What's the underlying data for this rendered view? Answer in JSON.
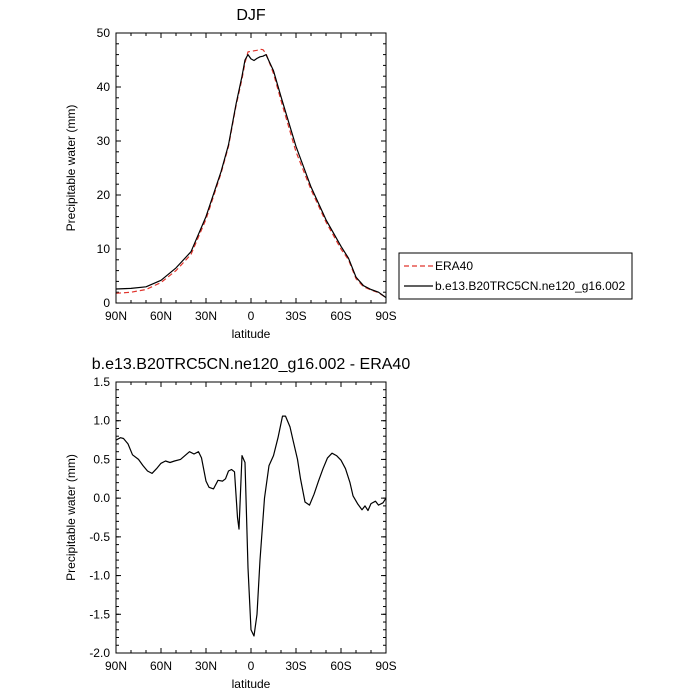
{
  "chart_data": [
    {
      "type": "line",
      "title": "DJF",
      "xlabel": "latitude",
      "ylabel": "Precipitable water (mm)",
      "xlim": [
        90,
        -90
      ],
      "ylim": [
        0,
        50
      ],
      "x_ticks": [
        90,
        60,
        30,
        0,
        -30,
        -60,
        -90
      ],
      "x_tick_labels": [
        "90N",
        "60N",
        "30N",
        "0",
        "30S",
        "60S",
        "90S"
      ],
      "y_ticks": [
        0,
        10,
        20,
        30,
        40,
        50
      ],
      "y_tick_labels": [
        "0",
        "10",
        "20",
        "30",
        "40",
        "50"
      ],
      "legend": {
        "placement": "right"
      },
      "series": [
        {
          "name": "ERA40",
          "color": "#e0342c",
          "dash": "dashed",
          "x": [
            90,
            80,
            70,
            60,
            50,
            40,
            30,
            20,
            15,
            10,
            6,
            4,
            2,
            0,
            -2,
            -4,
            -6,
            -8,
            -10,
            -15,
            -20,
            -30,
            -40,
            -50,
            -60,
            -65,
            -70,
            -75,
            -80,
            -85,
            -90
          ],
          "y": [
            1.8,
            2.0,
            2.5,
            3.8,
            6.0,
            9.0,
            15.5,
            24.0,
            29.0,
            36.5,
            41.5,
            44.5,
            46.5,
            46.6,
            46.7,
            46.8,
            47.0,
            46.9,
            46.2,
            42.5,
            37.5,
            28.0,
            21.0,
            15.0,
            10.0,
            8.0,
            4.5,
            3.0,
            2.4,
            1.9,
            1.0
          ]
        },
        {
          "name": "b.e13.B20TRC5CN.ne120_g16.002",
          "color": "#000000",
          "dash": "solid",
          "x": [
            90,
            80,
            70,
            60,
            50,
            40,
            30,
            20,
            15,
            10,
            6,
            4,
            2,
            0,
            -2,
            -4,
            -6,
            -8,
            -10,
            -15,
            -20,
            -30,
            -40,
            -50,
            -60,
            -65,
            -70,
            -75,
            -80,
            -85,
            -90
          ],
          "y": [
            2.6,
            2.7,
            3.0,
            4.2,
            6.5,
            9.5,
            16.0,
            24.3,
            29.3,
            36.8,
            42.0,
            45.0,
            46.0,
            45.2,
            44.9,
            45.3,
            45.6,
            45.7,
            46.0,
            43.0,
            38.2,
            29.0,
            21.5,
            15.4,
            10.5,
            8.3,
            4.8,
            3.2,
            2.5,
            2.0,
            1.0
          ]
        }
      ]
    },
    {
      "type": "line",
      "title": "b.e13.B20TRC5CN.ne120_g16.002 - ERA40",
      "xlabel": "latitude",
      "ylabel": "Precipitable water (mm)",
      "xlim": [
        90,
        -90
      ],
      "ylim": [
        -2.0,
        1.5
      ],
      "x_ticks": [
        90,
        60,
        30,
        0,
        -30,
        -60,
        -90
      ],
      "x_tick_labels": [
        "90N",
        "60N",
        "30N",
        "0",
        "30S",
        "60S",
        "90S"
      ],
      "y_ticks": [
        1.5,
        1.0,
        0.5,
        0.0,
        -0.5,
        -1.0,
        -1.5,
        -2.0
      ],
      "y_tick_labels": [
        "1.5",
        "1.0",
        "0.5",
        "0.0",
        "-0.5",
        "-1.0",
        "-1.5",
        "-2.0"
      ],
      "series": [
        {
          "color": "#000000",
          "dash": "solid",
          "x": [
            90,
            87,
            85,
            82,
            79,
            75,
            72,
            69,
            66,
            63,
            60,
            57,
            54,
            51,
            47,
            44,
            41,
            38,
            35,
            33,
            30,
            28,
            25,
            22,
            19,
            17,
            15,
            13,
            11,
            9,
            8,
            6,
            4,
            2,
            0,
            -2,
            -4,
            -6,
            -9,
            -12,
            -15,
            -18,
            -21,
            -23,
            -26,
            -28,
            -31,
            -33,
            -36,
            -39,
            -42,
            -45,
            -48,
            -51,
            -54,
            -57,
            -60,
            -63,
            -66,
            -68,
            -71,
            -74,
            -76,
            -78,
            -80,
            -83,
            -85,
            -88,
            -90
          ],
          "y": [
            0.75,
            0.78,
            0.77,
            0.7,
            0.56,
            0.5,
            0.42,
            0.35,
            0.32,
            0.38,
            0.45,
            0.48,
            0.46,
            0.48,
            0.5,
            0.55,
            0.6,
            0.57,
            0.6,
            0.52,
            0.22,
            0.14,
            0.12,
            0.23,
            0.22,
            0.25,
            0.35,
            0.37,
            0.34,
            -0.25,
            -0.4,
            0.55,
            0.46,
            -0.9,
            -1.7,
            -1.78,
            -1.5,
            -0.8,
            0.0,
            0.42,
            0.55,
            0.78,
            1.06,
            1.06,
            0.92,
            0.75,
            0.5,
            0.25,
            -0.05,
            -0.09,
            0.05,
            0.22,
            0.38,
            0.52,
            0.58,
            0.55,
            0.49,
            0.38,
            0.2,
            0.03,
            -0.07,
            -0.15,
            -0.1,
            -0.16,
            -0.07,
            -0.04,
            -0.09,
            -0.06,
            0.0
          ]
        }
      ]
    }
  ]
}
